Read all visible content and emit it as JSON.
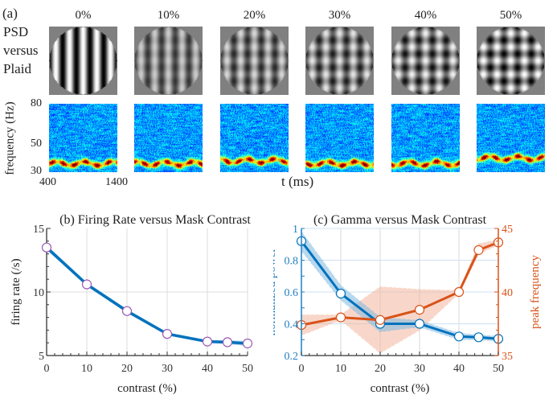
{
  "panel_a": {
    "label": "(a)",
    "side_label": [
      "PSD",
      "versus",
      "Plaid"
    ],
    "conditions": [
      "0%",
      "10%",
      "20%",
      "30%",
      "40%",
      "50%"
    ],
    "plaid_contrast": [
      0,
      0.1,
      0.2,
      0.3,
      0.4,
      0.5
    ],
    "ylabel": "frequency (Hz)",
    "yticks": [
      "80",
      "50",
      "30"
    ],
    "xticks": [
      "400",
      "1400"
    ],
    "xlabel": "t (ms)",
    "freq_range": [
      30,
      80
    ],
    "time_range": [
      400,
      1400
    ],
    "gamma_band_peak_hz": [
      36,
      36,
      38,
      36,
      36,
      40
    ]
  },
  "chart_data": [
    {
      "type": "line",
      "title": "(b) Firing Rate versus Mask Contrast",
      "xlabel": "contrast (%)",
      "ylabel": "firing rate (/s)",
      "x": [
        0,
        10,
        20,
        30,
        40,
        45,
        50
      ],
      "xticks": [
        "0",
        "10",
        "20",
        "30",
        "40",
        "50"
      ],
      "yticks": [
        "5",
        "10",
        "15"
      ],
      "xlim": [
        0,
        50
      ],
      "ylim": [
        5,
        15
      ],
      "grid": true,
      "series": [
        {
          "name": "firing rate",
          "color": "#0072BD",
          "marker_color": "#9B59B6",
          "values": [
            13.5,
            10.6,
            8.5,
            6.7,
            6.1,
            6.05,
            5.95
          ],
          "band_lower": [
            13.3,
            10.45,
            8.35,
            6.6,
            6.0,
            5.9,
            5.75
          ],
          "band_upper": [
            13.7,
            10.75,
            8.65,
            6.8,
            6.2,
            6.2,
            6.15
          ]
        }
      ]
    },
    {
      "type": "line",
      "title": "(c) Gamma versus Mask Contrast",
      "xlabel": "contrast (%)",
      "ylabel_left": "normalized power",
      "ylabel_right": "peak frequency",
      "x": [
        0,
        10,
        20,
        30,
        40,
        45,
        50
      ],
      "xticks": [
        "0",
        "10",
        "20",
        "30",
        "40",
        "50"
      ],
      "yticks_left": [
        "0.2",
        "0.4",
        "0.6",
        "0.8",
        "1"
      ],
      "yticks_right": [
        "35",
        "40",
        "45"
      ],
      "xlim": [
        0,
        50
      ],
      "ylim_left": [
        0.2,
        1.0
      ],
      "ylim_right": [
        35,
        45
      ],
      "grid": true,
      "series": [
        {
          "name": "normalized power",
          "axis": "left",
          "color": "#0072BD",
          "band_color": "#7fb8e0",
          "values": [
            0.92,
            0.59,
            0.4,
            0.4,
            0.32,
            0.315,
            0.305
          ],
          "band_lower": [
            0.86,
            0.55,
            0.35,
            0.38,
            0.3,
            0.3,
            0.29
          ],
          "band_upper": [
            0.98,
            0.64,
            0.44,
            0.42,
            0.34,
            0.33,
            0.32
          ]
        },
        {
          "name": "peak frequency",
          "axis": "right",
          "color": "#D95319",
          "band_color": "#f2b79e",
          "values": [
            37.4,
            38.0,
            37.8,
            38.6,
            40.0,
            43.3,
            43.9
          ],
          "band_lower": [
            36.6,
            37.8,
            35.2,
            37.0,
            39.9,
            43.0,
            43.7
          ],
          "band_upper": [
            38.2,
            38.2,
            40.4,
            40.2,
            40.1,
            43.8,
            44.1
          ]
        }
      ]
    }
  ]
}
